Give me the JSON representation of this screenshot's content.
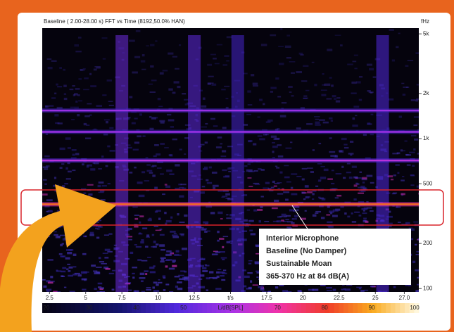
{
  "chart_data": {
    "type": "spectrogram",
    "title": "Baseline ( 2.00-28.00 s) FFT vs Time (8192,50.0% HAN)",
    "y_unit": "fHz",
    "log_y": true,
    "xlim": [
      2,
      28
    ],
    "xticks": [
      2.5,
      5,
      7.5,
      10,
      12.5,
      {
        "value": 15,
        "label": "t/s"
      },
      17.5,
      20,
      22.5,
      25,
      {
        "value": 27,
        "label": "27.0"
      }
    ],
    "ylim": [
      95,
      5460
    ],
    "yticks": [
      {
        "value": 100,
        "label": "100"
      },
      {
        "value": 200,
        "label": "200"
      },
      {
        "value": 500,
        "label": "500"
      },
      {
        "value": 1000,
        "label": "1k"
      },
      {
        "value": 2000,
        "label": "2k"
      },
      {
        "value": 5000,
        "label": "5k"
      }
    ],
    "colorlim": [
      20,
      100
    ],
    "colorticks": [
      20,
      30,
      40,
      50,
      {
        "value": 60,
        "label": "L/dB[SPL]"
      },
      70,
      80,
      90,
      100
    ],
    "tones": [
      {
        "freq": 1540,
        "level": 58
      },
      {
        "freq": 1110,
        "level": 58
      },
      {
        "freq": 715,
        "level": 62
      },
      {
        "freq": 365,
        "level": 84
      }
    ],
    "bursts": [
      {
        "t": 7.5,
        "level": 52
      },
      {
        "t": 12.5,
        "level": 50
      },
      {
        "t": 15.5,
        "level": 46
      },
      {
        "t": 25.5,
        "level": 48
      }
    ],
    "annotation": [
      "Interior Microphone",
      "Baseline (No Damper)",
      "Sustainable Moan",
      "365-370 Hz at 84 dB(A)"
    ]
  }
}
